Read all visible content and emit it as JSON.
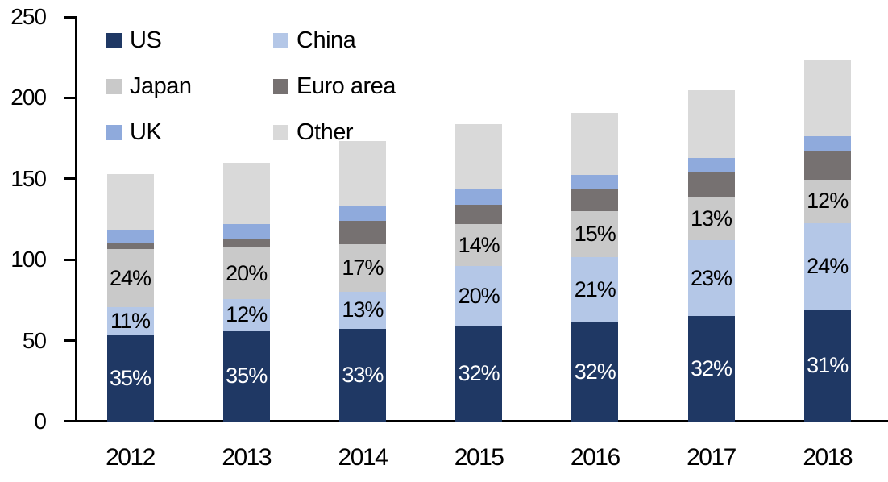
{
  "chart_data": {
    "type": "bar",
    "stacked": true,
    "grid": false,
    "background": "#ffffff",
    "axis_color": "#000000",
    "categories": [
      "2012",
      "2013",
      "2014",
      "2015",
      "2016",
      "2017",
      "2018"
    ],
    "series": [
      {
        "name": "US",
        "color": "#1f3864",
        "label_color": "#ffffff",
        "values": [
          53.5,
          56,
          57.5,
          59,
          61.5,
          65,
          69
        ],
        "labels": [
          "35%",
          "35%",
          "33%",
          "32%",
          "32%",
          "32%",
          "31%"
        ]
      },
      {
        "name": "China",
        "color": "#b4c7e7",
        "label_color": "#000000",
        "values": [
          17,
          19.5,
          22.5,
          37,
          40,
          47,
          53.5
        ],
        "labels": [
          "11%",
          "12%",
          "13%",
          "20%",
          "21%",
          "23%",
          "24%"
        ]
      },
      {
        "name": "Japan",
        "color": "#c9c9c9",
        "label_color": "#000000",
        "values": [
          36,
          32,
          29.5,
          26,
          28.5,
          26.5,
          27
        ],
        "labels": [
          "24%",
          "20%",
          "17%",
          "14%",
          "15%",
          "13%",
          "12%"
        ]
      },
      {
        "name": "Euro area",
        "color": "#767171",
        "label_color": "#000000",
        "values": [
          4,
          5.5,
          14.5,
          12,
          14,
          15.5,
          18
        ],
        "labels": [
          null,
          null,
          null,
          null,
          null,
          null,
          null
        ]
      },
      {
        "name": "UK",
        "color": "#8faadc",
        "label_color": "#000000",
        "values": [
          8,
          9,
          9,
          10,
          8.5,
          9,
          9
        ],
        "labels": [
          null,
          null,
          null,
          null,
          null,
          null,
          null
        ]
      },
      {
        "name": "Other",
        "color": "#d9d9d9",
        "label_color": "#000000",
        "values": [
          34.5,
          38,
          40.5,
          40,
          38.5,
          41.5,
          46.5
        ],
        "labels": [
          null,
          null,
          null,
          null,
          null,
          null,
          null
        ]
      }
    ],
    "totals": [
      153,
      160,
      173.5,
      184,
      191,
      204.5,
      223
    ],
    "y_axis": {
      "min": 0,
      "max": 250,
      "tick_step": 50,
      "tick_labels": [
        "0",
        "50",
        "100",
        "150",
        "200",
        "250"
      ]
    },
    "legend": {
      "position": "top-left",
      "columns": 2,
      "order": [
        "US",
        "China",
        "Japan",
        "Euro area",
        "UK",
        "Other"
      ]
    }
  }
}
